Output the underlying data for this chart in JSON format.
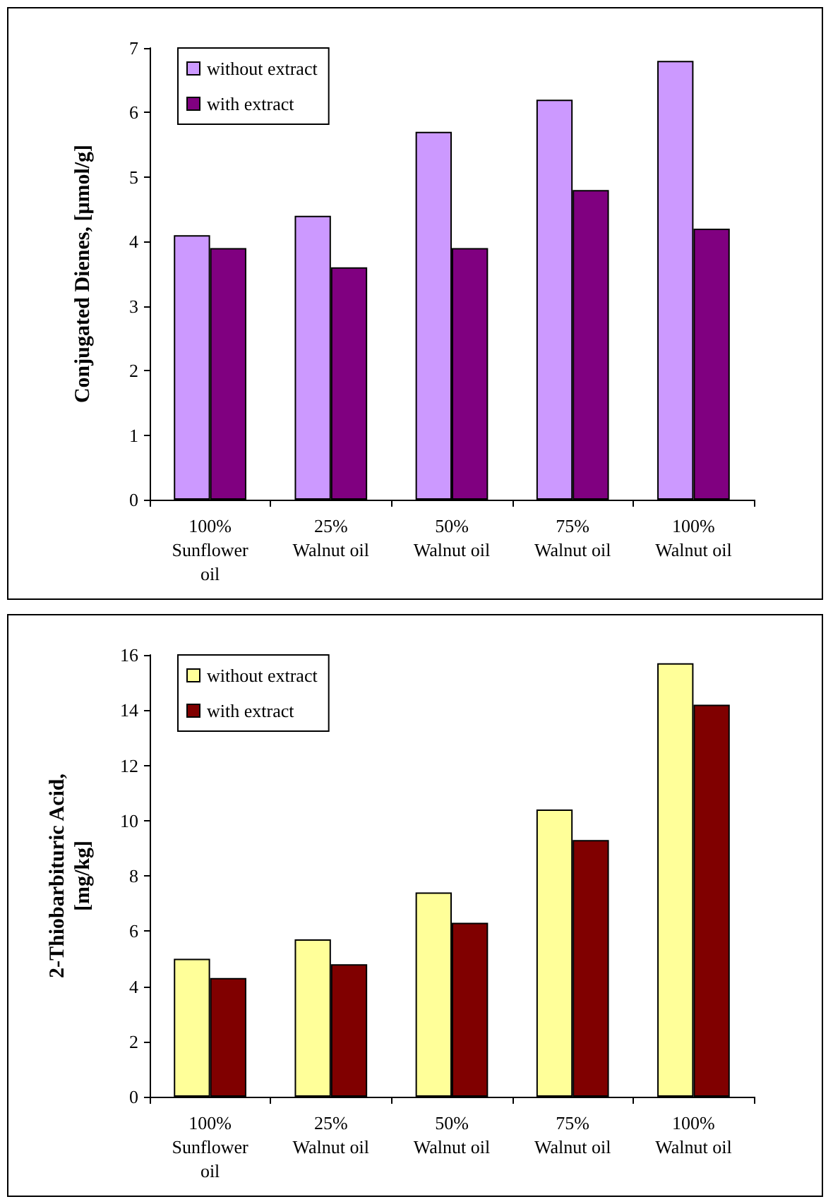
{
  "chart_data": [
    {
      "type": "bar",
      "ylabel": "Conjugated Dienes, [μmol/g]",
      "categories": [
        "100%\nSunflower\noil",
        "25%\nWalnut oil",
        "50%\nWalnut oil",
        "75%\nWalnut oil",
        "100%\nWalnut oil"
      ],
      "series": [
        {
          "name": "without extract",
          "color": "#cc99ff",
          "values": [
            4.1,
            4.4,
            5.7,
            6.2,
            6.8
          ]
        },
        {
          "name": "with extract",
          "color": "#800080",
          "values": [
            3.9,
            3.6,
            3.9,
            4.8,
            4.2
          ]
        }
      ],
      "ylim": [
        0,
        7
      ],
      "yticks": [
        0,
        1,
        2,
        3,
        4,
        5,
        6,
        7
      ],
      "legend": "top left",
      "grid": false
    },
    {
      "type": "bar",
      "ylabel": "2-Thiobarbituric Acid,\n[mg/kg]",
      "categories": [
        "100%\nSunflower\noil",
        "25%\nWalnut oil",
        "50%\nWalnut oil",
        "75%\nWalnut oil",
        "100%\nWalnut oil"
      ],
      "series": [
        {
          "name": "without extract",
          "color": "#ffff99",
          "values": [
            5.0,
            5.7,
            7.4,
            10.4,
            15.7
          ]
        },
        {
          "name": "with extract",
          "color": "#800000",
          "values": [
            4.3,
            4.8,
            6.3,
            9.3,
            14.2
          ]
        }
      ],
      "ylim": [
        0,
        16
      ],
      "yticks": [
        0,
        2,
        4,
        6,
        8,
        10,
        12,
        14,
        16
      ],
      "legend": "top left",
      "grid": false
    }
  ]
}
